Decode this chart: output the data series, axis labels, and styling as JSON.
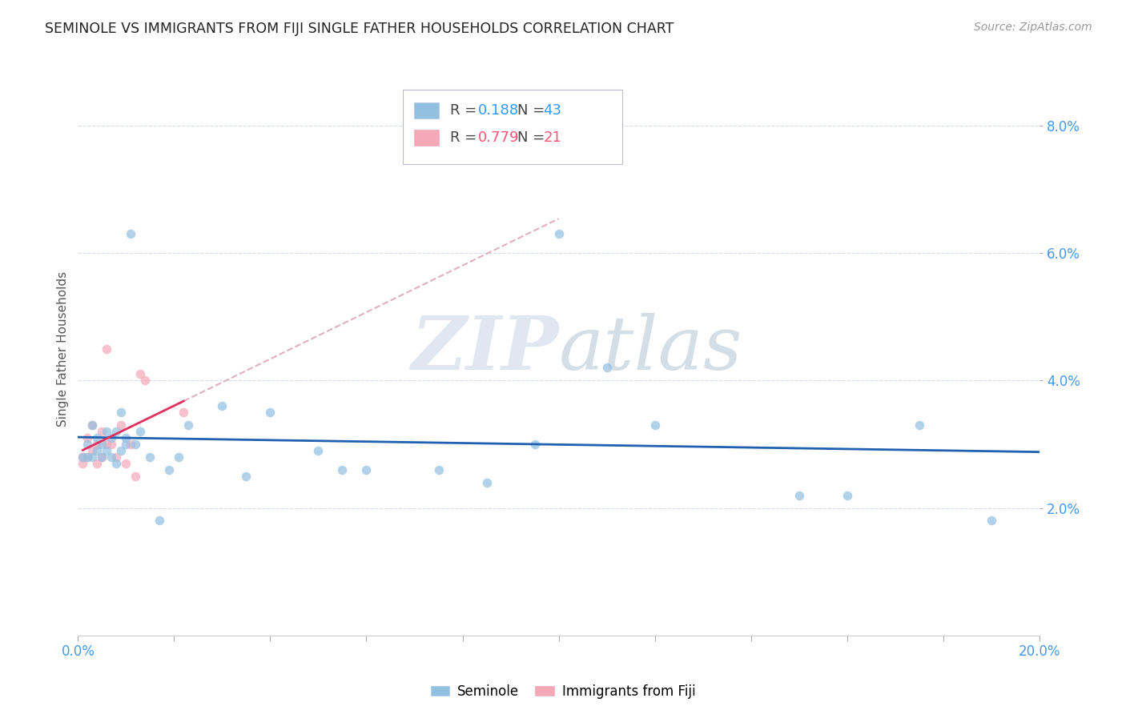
{
  "title": "SEMINOLE VS IMMIGRANTS FROM FIJI SINGLE FATHER HOUSEHOLDS CORRELATION CHART",
  "source": "Source: ZipAtlas.com",
  "ylabel": "Single Father Households",
  "xlim": [
    0.0,
    0.2
  ],
  "ylim": [
    0.0,
    0.09
  ],
  "yticks": [
    0.02,
    0.04,
    0.06,
    0.08
  ],
  "xticks": [
    0.0,
    0.02,
    0.04,
    0.06,
    0.08,
    0.1,
    0.12,
    0.14,
    0.16,
    0.18,
    0.2
  ],
  "xtick_labels_major": [
    "0.0%",
    "20.0%"
  ],
  "ytick_labels": [
    "2.0%",
    "4.0%",
    "6.0%",
    "8.0%"
  ],
  "grid_color": "#d8dce8",
  "background_color": "#ffffff",
  "seminole_color": "#92c0e0",
  "fiji_color": "#f4a8b8",
  "seminole_line_color": "#2060b0",
  "fiji_line_color": "#e03060",
  "fiji_dashed_color": "#e0b0c0",
  "scatter_alpha": 0.7,
  "marker_size": 70,
  "seminole_x": [
    0.001,
    0.002,
    0.002,
    0.003,
    0.003,
    0.004,
    0.004,
    0.005,
    0.005,
    0.006,
    0.006,
    0.007,
    0.007,
    0.008,
    0.008,
    0.009,
    0.009,
    0.01,
    0.01,
    0.011,
    0.012,
    0.013,
    0.015,
    0.017,
    0.019,
    0.021,
    0.023,
    0.03,
    0.035,
    0.04,
    0.05,
    0.055,
    0.06,
    0.075,
    0.085,
    0.095,
    0.1,
    0.11,
    0.12,
    0.15,
    0.16,
    0.175,
    0.19
  ],
  "seminole_y": [
    0.028,
    0.03,
    0.028,
    0.033,
    0.028,
    0.031,
    0.029,
    0.03,
    0.028,
    0.029,
    0.032,
    0.031,
    0.028,
    0.032,
    0.027,
    0.035,
    0.029,
    0.031,
    0.03,
    0.063,
    0.03,
    0.032,
    0.028,
    0.018,
    0.026,
    0.028,
    0.033,
    0.036,
    0.025,
    0.035,
    0.029,
    0.026,
    0.026,
    0.026,
    0.024,
    0.03,
    0.063,
    0.042,
    0.033,
    0.022,
    0.022,
    0.033,
    0.018
  ],
  "fiji_x": [
    0.001,
    0.001,
    0.002,
    0.002,
    0.003,
    0.003,
    0.004,
    0.004,
    0.005,
    0.005,
    0.006,
    0.006,
    0.007,
    0.008,
    0.009,
    0.01,
    0.011,
    0.012,
    0.013,
    0.014,
    0.022
  ],
  "fiji_y": [
    0.027,
    0.028,
    0.028,
    0.031,
    0.029,
    0.033,
    0.03,
    0.027,
    0.028,
    0.032,
    0.03,
    0.045,
    0.03,
    0.028,
    0.033,
    0.027,
    0.03,
    0.025,
    0.041,
    0.04,
    0.035
  ]
}
